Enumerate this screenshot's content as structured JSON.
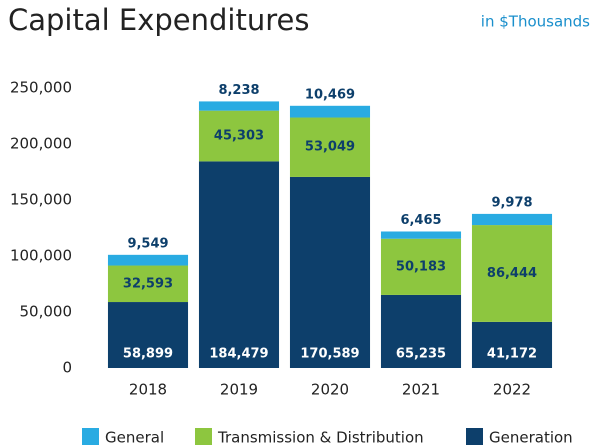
{
  "chart_data": {
    "type": "bar",
    "stacked": true,
    "title": "Capital Expenditures",
    "subtitle": "in $Thousands",
    "categories": [
      "2018",
      "2019",
      "2020",
      "2021",
      "2022"
    ],
    "series": [
      {
        "name": "Generation",
        "color": "#0d3f6b",
        "values": [
          58899,
          184479,
          170589,
          65235,
          41172
        ],
        "value_labels": [
          "58,899",
          "184,479",
          "170,589",
          "65,235",
          "41,172"
        ]
      },
      {
        "name": "Transmission & Distribution",
        "color": "#8dc63f",
        "values": [
          32593,
          45303,
          53049,
          50183,
          86444
        ],
        "value_labels": [
          "32,593",
          "45,303",
          "53,049",
          "50,183",
          "86,444"
        ]
      },
      {
        "name": "General",
        "color": "#29abe2",
        "values": [
          9549,
          8238,
          10469,
          6465,
          9978
        ],
        "value_labels": [
          "9,549",
          "8,238",
          "10,469",
          "6,465",
          "9,978"
        ]
      }
    ],
    "legend_order": [
      2,
      1,
      0
    ],
    "ylim": [
      0,
      250000
    ],
    "yticks": [
      0,
      {
        "value": 50000,
        "label": "50,000"
      },
      {
        "value": 100000,
        "label": "100,000"
      },
      {
        "value": 150000,
        "label": "150,000"
      },
      {
        "value": 200000,
        "label": "200,000"
      },
      {
        "value": 250000,
        "label": "250,000"
      }
    ],
    "grid": false
  }
}
